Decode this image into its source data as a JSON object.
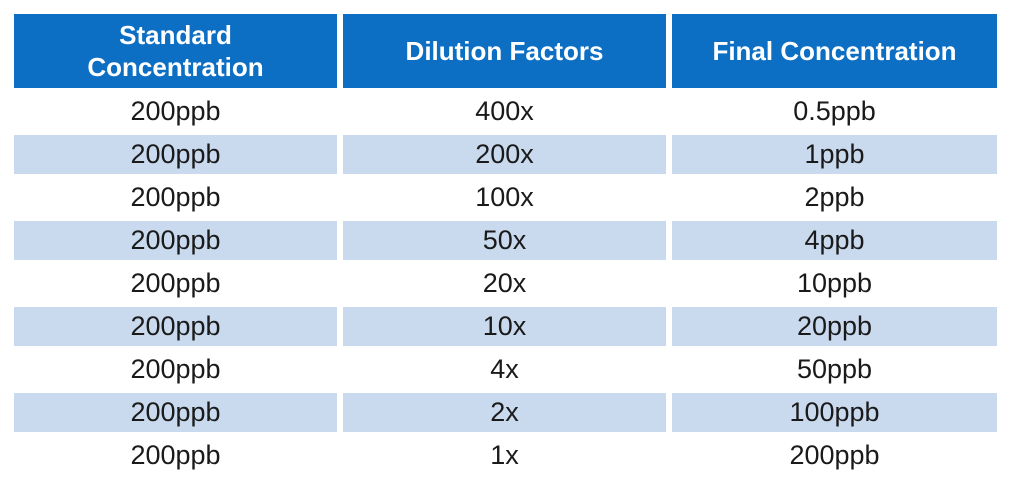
{
  "table": {
    "headers": [
      "Standard Concentration",
      "Dilution Factors",
      "Final Concentration"
    ],
    "header_lines": {
      "standard_line1": "Standard",
      "standard_line2": "Concentration"
    },
    "rows": [
      [
        "200ppb",
        "400x",
        "0.5ppb"
      ],
      [
        "200ppb",
        "200x",
        "1ppb"
      ],
      [
        "200ppb",
        "100x",
        "2ppb"
      ],
      [
        "200ppb",
        "50x",
        "4ppb"
      ],
      [
        "200ppb",
        "20x",
        "10ppb"
      ],
      [
        "200ppb",
        "10x",
        "20ppb"
      ],
      [
        "200ppb",
        "4x",
        "50ppb"
      ],
      [
        "200ppb",
        "2x",
        "100ppb"
      ],
      [
        "200ppb",
        "1x",
        "200ppb"
      ]
    ],
    "colors": {
      "header_bg": "#0c6fc4",
      "header_text": "#ffffff",
      "shaded_row": "#c9daef",
      "plain_row": "#ffffff"
    }
  }
}
